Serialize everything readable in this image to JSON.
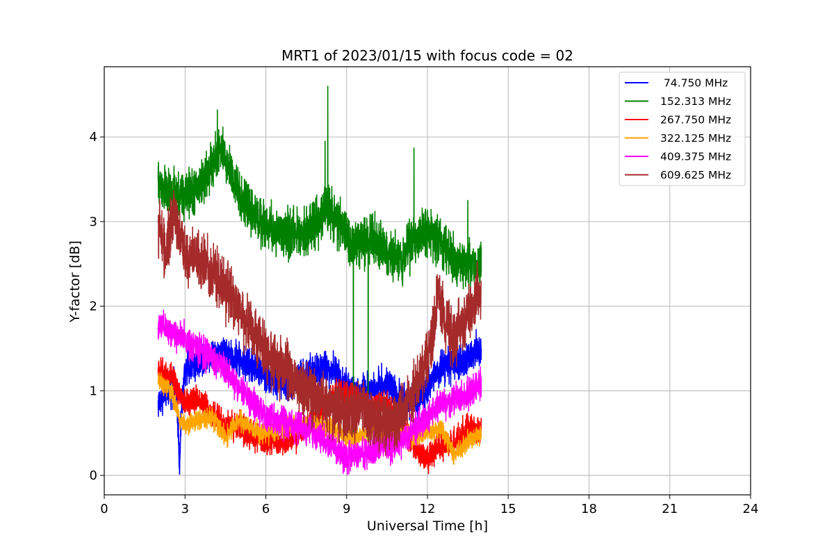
{
  "chart_data": {
    "type": "line",
    "title": "MRT1 of 2023/01/15 with focus code = 02",
    "xlabel": "Universal Time [h]",
    "ylabel": "Y-factor [dB]",
    "xlim": [
      0,
      24
    ],
    "ylim": [
      -0.23,
      4.83
    ],
    "xticks": [
      0,
      3,
      6,
      9,
      12,
      15,
      18,
      21,
      24
    ],
    "yticks": [
      0,
      1,
      2,
      3,
      4
    ],
    "grid": true,
    "legend": "top-right",
    "series": [
      {
        "name": " 74.750 MHz",
        "color": "#0000ff",
        "noise": 0.12,
        "points": [
          [
            2.0,
            0.85
          ],
          [
            2.3,
            1.0
          ],
          [
            2.6,
            1.05
          ],
          [
            2.75,
            0.6
          ],
          [
            2.8,
            0.02
          ],
          [
            2.85,
            0.7
          ],
          [
            3.0,
            1.25
          ],
          [
            3.5,
            1.35
          ],
          [
            4.0,
            1.45
          ],
          [
            4.5,
            1.45
          ],
          [
            5.0,
            1.35
          ],
          [
            5.5,
            1.3
          ],
          [
            6.0,
            1.2
          ],
          [
            6.5,
            1.1
          ],
          [
            7.0,
            1.05
          ],
          [
            7.5,
            1.2
          ],
          [
            8.0,
            1.25
          ],
          [
            8.5,
            1.25
          ],
          [
            9.0,
            1.05
          ],
          [
            9.5,
            0.95
          ],
          [
            10.0,
            1.05
          ],
          [
            10.5,
            1.1
          ],
          [
            11.0,
            0.9
          ],
          [
            11.5,
            0.85
          ],
          [
            12.0,
            1.05
          ],
          [
            12.5,
            1.3
          ],
          [
            13.0,
            1.3
          ],
          [
            13.5,
            1.4
          ],
          [
            14.0,
            1.5
          ]
        ]
      },
      {
        "name": "152.313 MHz",
        "color": "#008000",
        "noise": 0.17,
        "points": [
          [
            2.0,
            3.45
          ],
          [
            2.5,
            3.3
          ],
          [
            3.0,
            3.3
          ],
          [
            3.5,
            3.4
          ],
          [
            4.0,
            3.65
          ],
          [
            4.3,
            3.85
          ],
          [
            4.7,
            3.6
          ],
          [
            5.0,
            3.3
          ],
          [
            5.5,
            3.1
          ],
          [
            6.0,
            2.95
          ],
          [
            6.5,
            2.85
          ],
          [
            7.0,
            2.85
          ],
          [
            7.5,
            2.9
          ],
          [
            8.0,
            3.0
          ],
          [
            8.3,
            3.2
          ],
          [
            8.6,
            3.0
          ],
          [
            9.0,
            2.85
          ],
          [
            9.2,
            2.7
          ],
          [
            9.5,
            2.75
          ],
          [
            9.8,
            2.8
          ],
          [
            10.0,
            2.85
          ],
          [
            10.5,
            2.6
          ],
          [
            11.0,
            2.55
          ],
          [
            11.5,
            2.8
          ],
          [
            12.0,
            2.9
          ],
          [
            12.5,
            2.75
          ],
          [
            13.0,
            2.55
          ],
          [
            13.5,
            2.5
          ],
          [
            14.0,
            2.5
          ]
        ],
        "spikes": [
          [
            4.2,
            4.32
          ],
          [
            8.3,
            4.6
          ],
          [
            8.2,
            3.95
          ],
          [
            11.5,
            3.87
          ],
          [
            9.25,
            0.3
          ],
          [
            9.8,
            0.3
          ],
          [
            12.35,
            3.0
          ],
          [
            13.5,
            3.25
          ]
        ]
      },
      {
        "name": "267.750 MHz",
        "color": "#ff0000",
        "noise": 0.1,
        "points": [
          [
            2.0,
            1.25
          ],
          [
            2.5,
            1.15
          ],
          [
            3.0,
            0.85
          ],
          [
            3.5,
            0.9
          ],
          [
            4.0,
            0.75
          ],
          [
            4.5,
            0.6
          ],
          [
            5.0,
            0.6
          ],
          [
            5.5,
            0.45
          ],
          [
            6.0,
            0.4
          ],
          [
            6.5,
            0.4
          ],
          [
            7.0,
            0.45
          ],
          [
            7.5,
            0.55
          ],
          [
            8.0,
            0.7
          ],
          [
            8.5,
            0.95
          ],
          [
            9.0,
            1.0
          ],
          [
            9.5,
            0.85
          ],
          [
            10.0,
            0.8
          ],
          [
            10.5,
            0.85
          ],
          [
            11.0,
            0.6
          ],
          [
            11.5,
            0.35
          ],
          [
            12.0,
            0.2
          ],
          [
            12.5,
            0.35
          ],
          [
            13.0,
            0.4
          ],
          [
            13.5,
            0.55
          ],
          [
            14.0,
            0.55
          ]
        ]
      },
      {
        "name": "322.125 MHz",
        "color": "#ffa500",
        "noise": 0.07,
        "points": [
          [
            2.0,
            1.1
          ],
          [
            2.5,
            1.0
          ],
          [
            2.8,
            0.65
          ],
          [
            3.0,
            0.6
          ],
          [
            3.5,
            0.65
          ],
          [
            4.0,
            0.7
          ],
          [
            4.5,
            0.45
          ],
          [
            5.0,
            0.65
          ],
          [
            5.5,
            0.55
          ],
          [
            6.0,
            0.5
          ],
          [
            6.5,
            0.55
          ],
          [
            7.0,
            0.6
          ],
          [
            7.5,
            0.6
          ],
          [
            8.0,
            0.6
          ],
          [
            8.5,
            0.55
          ],
          [
            9.0,
            0.45
          ],
          [
            9.5,
            0.45
          ],
          [
            10.0,
            0.55
          ],
          [
            10.5,
            0.5
          ],
          [
            11.0,
            0.5
          ],
          [
            11.5,
            0.45
          ],
          [
            12.0,
            0.5
          ],
          [
            12.5,
            0.55
          ],
          [
            13.0,
            0.25
          ],
          [
            13.5,
            0.4
          ],
          [
            14.0,
            0.5
          ]
        ]
      },
      {
        "name": "409.375 MHz",
        "color": "#ff00ff",
        "noise": 0.11,
        "points": [
          [
            2.0,
            1.75
          ],
          [
            2.5,
            1.7
          ],
          [
            3.0,
            1.6
          ],
          [
            3.5,
            1.5
          ],
          [
            4.0,
            1.4
          ],
          [
            4.5,
            1.25
          ],
          [
            5.0,
            1.05
          ],
          [
            5.5,
            0.85
          ],
          [
            6.0,
            0.7
          ],
          [
            6.5,
            0.65
          ],
          [
            7.0,
            0.6
          ],
          [
            7.5,
            0.55
          ],
          [
            8.0,
            0.45
          ],
          [
            8.5,
            0.35
          ],
          [
            9.0,
            0.2
          ],
          [
            9.5,
            0.25
          ],
          [
            10.0,
            0.3
          ],
          [
            10.5,
            0.35
          ],
          [
            11.0,
            0.4
          ],
          [
            11.5,
            0.55
          ],
          [
            12.0,
            0.7
          ],
          [
            12.5,
            0.85
          ],
          [
            13.0,
            0.9
          ],
          [
            13.5,
            0.95
          ],
          [
            14.0,
            1.1
          ]
        ]
      },
      {
        "name": "609.625 MHz",
        "color": "#a52a2a",
        "noise": 0.2,
        "points": [
          [
            2.0,
            3.0
          ],
          [
            2.3,
            2.6
          ],
          [
            2.6,
            3.15
          ],
          [
            2.8,
            2.9
          ],
          [
            3.0,
            2.6
          ],
          [
            3.5,
            2.55
          ],
          [
            4.0,
            2.45
          ],
          [
            4.5,
            2.2
          ],
          [
            5.0,
            1.95
          ],
          [
            5.5,
            1.7
          ],
          [
            6.0,
            1.45
          ],
          [
            6.5,
            1.3
          ],
          [
            7.0,
            1.15
          ],
          [
            7.5,
            1.0
          ],
          [
            8.0,
            0.9
          ],
          [
            8.5,
            0.8
          ],
          [
            9.0,
            0.75
          ],
          [
            9.5,
            0.8
          ],
          [
            10.0,
            0.7
          ],
          [
            10.5,
            0.6
          ],
          [
            11.0,
            0.7
          ],
          [
            11.5,
            1.0
          ],
          [
            12.0,
            1.35
          ],
          [
            12.4,
            2.1
          ],
          [
            12.7,
            1.8
          ],
          [
            13.0,
            1.6
          ],
          [
            13.5,
            1.9
          ],
          [
            14.0,
            2.2
          ]
        ]
      }
    ]
  }
}
